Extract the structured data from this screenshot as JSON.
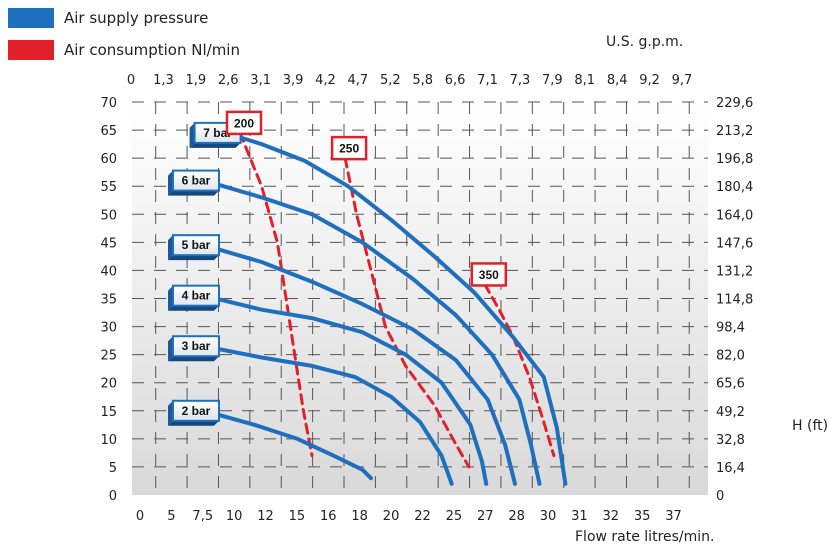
{
  "legend": [
    {
      "label": "Air supply pressure",
      "color": "#1f6fbf"
    },
    {
      "label": "Air consumption Nl/min",
      "color": "#e0202a"
    }
  ],
  "chart_data": {
    "type": "line",
    "xlabel": "Flow rate litres/min.",
    "x2label": "U.S. g.p.m.",
    "y2label": "H (ft)",
    "xlim": [
      0,
      40
    ],
    "ylim": [
      0,
      70
    ],
    "grid": true,
    "x_ticks_bottom": [
      "0",
      "5",
      "7,5",
      "10",
      "12",
      "15",
      "16",
      "18",
      "20",
      "22",
      "25",
      "27",
      "28",
      "30",
      "31",
      "32",
      "35",
      "37"
    ],
    "x_ticks_top": [
      "0",
      "1,3",
      "1,9",
      "2,6",
      "3,1",
      "3,9",
      "4,2",
      "4,7",
      "5,2",
      "5,8",
      "6,6",
      "7,1",
      "7,3",
      "7,9",
      "8,1",
      "8,4",
      "9,2",
      "9,7"
    ],
    "y_ticks_left": [
      "0",
      "5",
      "10",
      "15",
      "20",
      "25",
      "30",
      "35",
      "40",
      "45",
      "50",
      "55",
      "60",
      "65",
      "70"
    ],
    "y_ticks_right": [
      "0",
      "16,4",
      "32,8",
      "49,2",
      "65,6",
      "82,0",
      "98,4",
      "114,8",
      "131,2",
      "147,6",
      "164,0",
      "180,4",
      "196,8",
      "213,2",
      "229,6"
    ],
    "series": [
      {
        "name": "7 bar",
        "color": "#1f6fbf",
        "points": [
          [
            6.5,
            64.5
          ],
          [
            9,
            62.5
          ],
          [
            12,
            59.5
          ],
          [
            15,
            55
          ],
          [
            18,
            49
          ],
          [
            21,
            42.5
          ],
          [
            23.8,
            36
          ],
          [
            26.5,
            28
          ],
          [
            28.6,
            21
          ],
          [
            29.5,
            12
          ],
          [
            30.1,
            2
          ]
        ]
      },
      {
        "name": "6 bar",
        "color": "#1f6fbf",
        "points": [
          [
            5,
            56
          ],
          [
            9,
            53
          ],
          [
            12.5,
            50
          ],
          [
            16,
            45
          ],
          [
            19.5,
            38.5
          ],
          [
            22.5,
            32
          ],
          [
            25,
            25
          ],
          [
            26.9,
            17
          ],
          [
            27.7,
            9
          ],
          [
            28.3,
            2
          ]
        ]
      },
      {
        "name": "5 bar",
        "color": "#1f6fbf",
        "points": [
          [
            5,
            44.5
          ],
          [
            9,
            41.5
          ],
          [
            12.5,
            38
          ],
          [
            16,
            34
          ],
          [
            19.5,
            29.5
          ],
          [
            22.5,
            24
          ],
          [
            24.7,
            17
          ],
          [
            25.9,
            9
          ],
          [
            26.6,
            2
          ]
        ]
      },
      {
        "name": "4 bar",
        "color": "#1f6fbf",
        "points": [
          [
            5,
            35.5
          ],
          [
            9,
            33
          ],
          [
            12.5,
            31.5
          ],
          [
            16,
            29
          ],
          [
            19,
            25
          ],
          [
            21.5,
            20
          ],
          [
            23.5,
            12.5
          ],
          [
            24.3,
            6
          ],
          [
            24.6,
            2
          ]
        ]
      },
      {
        "name": "3 bar",
        "color": "#1f6fbf",
        "points": [
          [
            5,
            26.5
          ],
          [
            9,
            24.5
          ],
          [
            12.5,
            23
          ],
          [
            15.5,
            21
          ],
          [
            18,
            17.5
          ],
          [
            20,
            13
          ],
          [
            21.5,
            7
          ],
          [
            22.2,
            2
          ]
        ]
      },
      {
        "name": "2 bar",
        "color": "#1f6fbf",
        "points": [
          [
            5,
            15
          ],
          [
            8.5,
            12.5
          ],
          [
            11.5,
            10
          ],
          [
            14,
            7
          ],
          [
            16,
            4.5
          ],
          [
            16.6,
            3
          ]
        ]
      }
    ],
    "consumption": [
      {
        "name": "200",
        "color": "#e0202a",
        "points": [
          [
            7.5,
            64.5
          ],
          [
            9,
            55
          ],
          [
            10.1,
            45
          ],
          [
            10.7,
            35
          ],
          [
            11.3,
            25
          ],
          [
            11.9,
            15
          ],
          [
            12.5,
            7
          ]
        ]
      },
      {
        "name": "250",
        "color": "#e0202a",
        "points": [
          [
            14.8,
            60
          ],
          [
            15.6,
            50
          ],
          [
            16.6,
            40
          ],
          [
            17.6,
            30
          ],
          [
            19,
            23
          ],
          [
            21,
            16
          ],
          [
            22.5,
            9
          ],
          [
            23.4,
            5
          ]
        ]
      },
      {
        "name": "350",
        "color": "#e0202a",
        "points": [
          [
            24.5,
            37.5
          ],
          [
            25.5,
            33
          ],
          [
            26.5,
            28
          ],
          [
            27.6,
            21
          ],
          [
            28.6,
            13
          ],
          [
            29.3,
            7
          ]
        ]
      }
    ]
  }
}
